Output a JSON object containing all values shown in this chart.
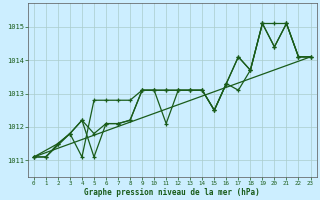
{
  "bg_color": "#cceeff",
  "grid_color": "#aacccc",
  "line_color": "#1a5c1a",
  "marker_color": "#1a5c1a",
  "ylabel_ticks": [
    1011,
    1012,
    1013,
    1014,
    1015
  ],
  "xlabel_ticks": [
    0,
    1,
    2,
    3,
    4,
    5,
    6,
    7,
    8,
    9,
    10,
    11,
    12,
    13,
    14,
    15,
    16,
    17,
    18,
    19,
    20,
    21,
    22,
    23
  ],
  "xlabel": "Graphe pression niveau de la mer (hPa)",
  "ylim": [
    1010.5,
    1015.7
  ],
  "xlim": [
    -0.5,
    23.5
  ],
  "series_main": {
    "x": [
      0,
      1,
      2,
      3,
      4,
      5,
      6,
      7,
      8,
      9,
      10,
      11,
      12,
      13,
      14,
      15,
      16,
      17,
      18,
      19,
      20,
      21,
      22,
      23
    ],
    "y": [
      1011.1,
      1011.1,
      1011.5,
      1011.8,
      1012.2,
      1011.8,
      1012.1,
      1012.1,
      1012.2,
      1013.1,
      1013.1,
      1013.1,
      1013.1,
      1013.1,
      1013.1,
      1012.5,
      1013.3,
      1014.1,
      1013.7,
      1015.1,
      1014.4,
      1015.1,
      1014.1,
      1014.1
    ]
  },
  "series2": {
    "x": [
      0,
      1,
      3,
      4,
      5,
      6,
      7,
      8,
      9,
      10,
      11,
      12,
      13,
      14,
      15,
      16,
      17,
      18,
      19,
      20,
      21,
      22,
      23
    ],
    "y": [
      1011.1,
      1011.1,
      1011.8,
      1011.1,
      1012.8,
      1012.8,
      1012.8,
      1012.8,
      1013.1,
      1013.1,
      1013.1,
      1013.1,
      1013.1,
      1013.1,
      1012.5,
      1013.3,
      1014.1,
      1013.7,
      1015.1,
      1014.4,
      1015.1,
      1014.1,
      1014.1
    ]
  },
  "series3": {
    "x": [
      0,
      2,
      3,
      4,
      5,
      6,
      7,
      8,
      9,
      10,
      11,
      12,
      13,
      14,
      15,
      16,
      17,
      18,
      19,
      20,
      21,
      22,
      23
    ],
    "y": [
      1011.1,
      1011.5,
      1011.8,
      1012.2,
      1011.1,
      1012.1,
      1012.1,
      1012.2,
      1013.1,
      1013.1,
      1012.1,
      1013.1,
      1013.1,
      1013.1,
      1012.5,
      1013.3,
      1013.1,
      1013.7,
      1015.1,
      1015.1,
      1015.1,
      1014.1,
      1014.1
    ]
  },
  "trend_x": [
    0,
    23
  ],
  "trend_y": [
    1011.1,
    1014.1
  ]
}
